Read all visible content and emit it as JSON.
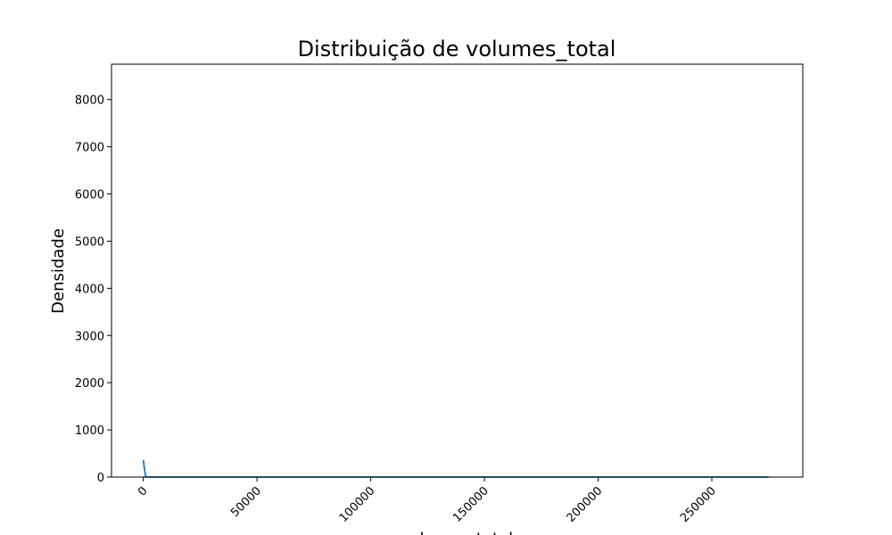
{
  "chart_data": {
    "type": "line",
    "title": "Distribuição de volumes_total",
    "xlabel": "volumes_total",
    "ylabel": "Densidade",
    "xlim": [
      -14000,
      290000
    ],
    "ylim": [
      0,
      8750
    ],
    "grid": false,
    "x_ticks": [
      0,
      50000,
      100000,
      150000,
      200000,
      250000
    ],
    "x_tick_labels": [
      "0",
      "50000",
      "100000",
      "150000",
      "200000",
      "250000"
    ],
    "y_ticks": [
      0,
      1000,
      2000,
      3000,
      4000,
      5000,
      6000,
      7000,
      8000
    ],
    "y_tick_labels": [
      "0",
      "1000",
      "2000",
      "3000",
      "4000",
      "5000",
      "6000",
      "7000",
      "8000"
    ],
    "series": [
      {
        "color": "#1f77b4",
        "x": [
          0,
          1000,
          2000,
          10000,
          50000,
          100000,
          150000,
          200000,
          250000,
          275000
        ],
        "y": [
          360,
          0,
          0,
          0,
          0,
          0,
          0,
          0,
          0,
          0
        ]
      }
    ]
  }
}
